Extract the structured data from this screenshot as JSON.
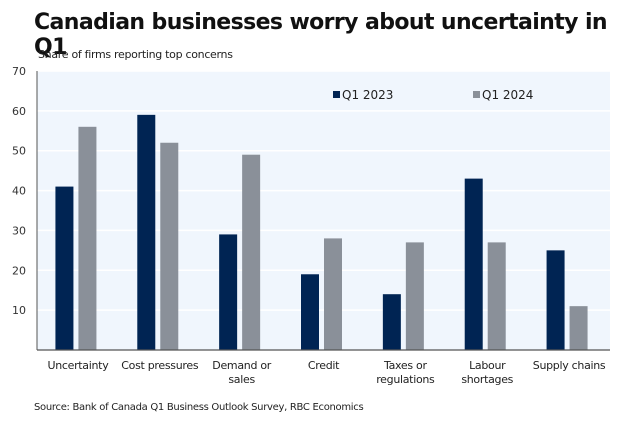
{
  "chart_data": {
    "type": "bar",
    "title": "Canadian businesses worry about uncertainty in Q1",
    "subtitle": "Share of firms reporting top concerns",
    "source": "Source: Bank of Canada Q1 Business Outlook Survey, RBC Economics",
    "xlabel": "",
    "ylabel": "",
    "ylim": [
      0,
      70
    ],
    "yticks": [
      10,
      20,
      30,
      40,
      50,
      60,
      70
    ],
    "grid": true,
    "legend_position": "top-right",
    "categories": [
      [
        "Uncertainty"
      ],
      [
        "Cost pressures"
      ],
      [
        "Demand or",
        "sales"
      ],
      [
        "Credit"
      ],
      [
        "Taxes or",
        "regulations"
      ],
      [
        "Labour",
        "shortages"
      ],
      [
        "Supply chains"
      ]
    ],
    "series": [
      {
        "name": "Q1 2023",
        "color": "#002453",
        "values": [
          41,
          59,
          29,
          19,
          14,
          43,
          25
        ]
      },
      {
        "name": "Q1 2024",
        "color": "#8a9099",
        "values": [
          56,
          52,
          49,
          28,
          27,
          27,
          11
        ]
      }
    ],
    "colors": {
      "plot_background": "#f0f6fd",
      "gridline": "#ffffff",
      "axis": "#555555"
    }
  }
}
